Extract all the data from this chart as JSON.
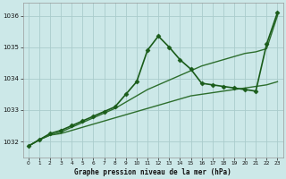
{
  "title": "Graphe pression niveau de la mer (hPa)",
  "background_color": "#cce8e8",
  "grid_color": "#aacccc",
  "xlim": [
    -0.5,
    23.5
  ],
  "ylim": [
    1031.5,
    1036.4
  ],
  "yticks": [
    1032,
    1033,
    1034,
    1035,
    1036
  ],
  "xticks": [
    0,
    1,
    2,
    3,
    4,
    5,
    6,
    7,
    8,
    9,
    10,
    11,
    12,
    13,
    14,
    15,
    16,
    17,
    18,
    19,
    20,
    21,
    22,
    23
  ],
  "series": [
    {
      "x": [
        0,
        1,
        2,
        3,
        4,
        5,
        6,
        7,
        8,
        9,
        10,
        11,
        12,
        13,
        14,
        15,
        16,
        17,
        18,
        19,
        20,
        21,
        22,
        23
      ],
      "y": [
        1031.85,
        1032.05,
        1032.2,
        1032.25,
        1032.35,
        1032.45,
        1032.55,
        1032.65,
        1032.75,
        1032.85,
        1032.95,
        1033.05,
        1033.15,
        1033.25,
        1033.35,
        1033.45,
        1033.5,
        1033.55,
        1033.6,
        1033.65,
        1033.7,
        1033.75,
        1033.8,
        1033.9
      ],
      "color": "#2d6e2d",
      "linewidth": 1.0,
      "marker": null
    },
    {
      "x": [
        0,
        1,
        2,
        3,
        4,
        5,
        6,
        7,
        8,
        9,
        10,
        11,
        12,
        13,
        14,
        15,
        16,
        17,
        18,
        19,
        20,
        21,
        22,
        23
      ],
      "y": [
        1031.85,
        1032.05,
        1032.2,
        1032.3,
        1032.45,
        1032.6,
        1032.75,
        1032.9,
        1033.05,
        1033.25,
        1033.45,
        1033.65,
        1033.8,
        1033.95,
        1034.1,
        1034.25,
        1034.4,
        1034.5,
        1034.6,
        1034.7,
        1034.8,
        1034.85,
        1034.95,
        1036.0
      ],
      "color": "#2d6e2d",
      "linewidth": 1.0,
      "marker": null
    },
    {
      "x": [
        0,
        1,
        2,
        3,
        4,
        5,
        6,
        7,
        8,
        9,
        10,
        11,
        12,
        13,
        14,
        15,
        16,
        17,
        18,
        19,
        20,
        21,
        22,
        23
      ],
      "y": [
        1031.85,
        1032.05,
        1032.25,
        1032.35,
        1032.5,
        1032.65,
        1032.8,
        1032.95,
        1033.1,
        1033.5,
        1033.9,
        1034.9,
        1035.35,
        1035.0,
        1034.6,
        1034.3,
        1033.85,
        1033.8,
        1033.75,
        1033.7,
        1033.65,
        1033.6,
        1035.1,
        1036.1
      ],
      "color": "#1a5c1a",
      "linewidth": 1.2,
      "marker": "D",
      "markersize": 2.5
    }
  ]
}
